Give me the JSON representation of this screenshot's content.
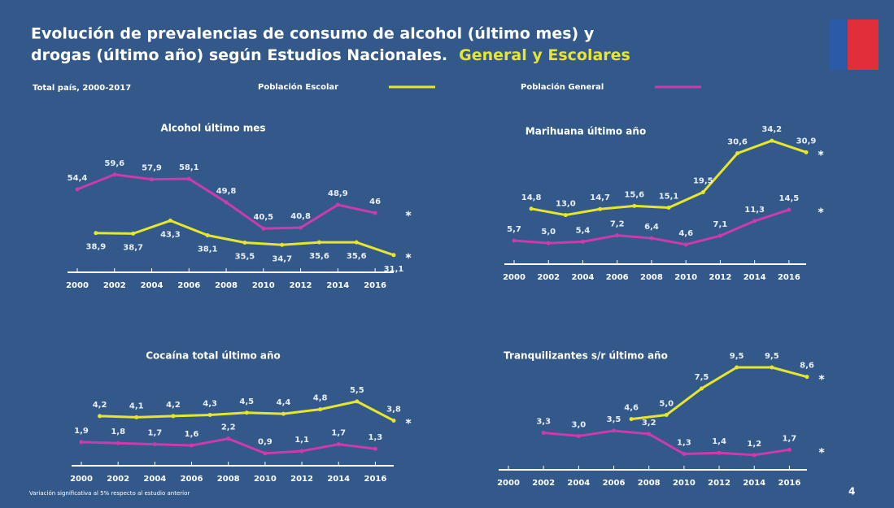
{
  "slide": {
    "title_line1": "Evolución de prevalencias de consumo de alcohol (último mes) y",
    "title_line2": "drogas (último año) según Estudios Nacionales.",
    "title_highlight": "General y Escolares",
    "subtitle": "Total país, 2000-2017",
    "footnote": "Variación significativa al 5% respecto al estudio anterior",
    "page_number": "4"
  },
  "chart_data": [
    {
      "type": "line",
      "title": "Alcohol último mes",
      "xlim": [
        2000,
        2017
      ],
      "xticks": [
        2000,
        2002,
        2004,
        2006,
        2008,
        2010,
        2012,
        2014,
        2016
      ],
      "ylim": [
        25,
        65
      ],
      "series": [
        {
          "name": "Población Escolar",
          "color": "#e6e62e",
          "x": [
            2001,
            2003,
            2005,
            2007,
            2009,
            2011,
            2013,
            2015,
            2017
          ],
          "values": [
            38.9,
            38.7,
            43.3,
            38.1,
            35.5,
            34.7,
            35.6,
            35.6,
            31.1
          ],
          "value_labels": [
            "38,9",
            "38,7",
            "43,3",
            "38,1",
            "35,5",
            "34,7",
            "35,6",
            "35,6",
            "31,1"
          ]
        },
        {
          "name": "Población General",
          "color": "#cc3aad",
          "x": [
            2000,
            2002,
            2004,
            2006,
            2008,
            2010,
            2012,
            2014,
            2016
          ],
          "values": [
            54.4,
            59.6,
            57.9,
            58.1,
            49.8,
            40.5,
            40.8,
            48.9,
            46
          ],
          "value_labels": [
            "54,4",
            "59,6",
            "57,9",
            "58,1",
            "49,8",
            "40,5",
            "40,8",
            "48,9",
            "46"
          ]
        }
      ],
      "annotations": [
        "*",
        "*"
      ]
    },
    {
      "type": "line",
      "title": "Marihuana último año",
      "xlim": [
        2000,
        2017
      ],
      "xticks": [
        2000,
        2002,
        2004,
        2006,
        2008,
        2010,
        2012,
        2014,
        2016
      ],
      "ylim": [
        -1,
        37
      ],
      "series": [
        {
          "color": "#e6e62e",
          "x": [
            2001,
            2003,
            2005,
            2007,
            2009,
            2011,
            2013,
            2015,
            2017
          ],
          "values": [
            14.8,
            13.0,
            14.7,
            15.6,
            15.1,
            19.5,
            30.6,
            34.2,
            30.9
          ],
          "value_labels": [
            "14,8",
            "13,0",
            "14,7",
            "15,6",
            "15,1",
            "19,5",
            "30,6",
            "34,2",
            "30,9"
          ]
        },
        {
          "color": "#cc3aad",
          "x": [
            2000,
            2002,
            2004,
            2006,
            2008,
            2010,
            2012,
            2014,
            2016
          ],
          "values": [
            5.7,
            5.0,
            5.4,
            7.2,
            6.4,
            4.6,
            7.1,
            11.3,
            14.5
          ],
          "value_labels": [
            "5,7",
            "5,0",
            "5,4",
            "7,2",
            "6,4",
            "4,6",
            "7,1",
            "11,3",
            "14,5"
          ]
        }
      ],
      "annotations": [
        "*",
        "*"
      ]
    },
    {
      "type": "line",
      "title": "Cocaína total último año",
      "xlim": [
        2000,
        2017
      ],
      "xticks": [
        2000,
        2002,
        2004,
        2006,
        2008,
        2010,
        2012,
        2014,
        2016
      ],
      "ylim": [
        -0.2,
        6.5
      ],
      "series": [
        {
          "color": "#e6e62e",
          "x": [
            2001,
            2003,
            2005,
            2007,
            2009,
            2011,
            2013,
            2015,
            2017
          ],
          "values": [
            4.2,
            4.1,
            4.2,
            4.3,
            4.5,
            4.4,
            4.8,
            5.5,
            3.8
          ],
          "value_labels": [
            "4,2",
            "4,1",
            "4,2",
            "4,3",
            "4,5",
            "4,4",
            "4,8",
            "5,5",
            "3,8"
          ]
        },
        {
          "color": "#cc3aad",
          "x": [
            2000,
            2002,
            2004,
            2006,
            2008,
            2010,
            2012,
            2014,
            2016
          ],
          "values": [
            1.9,
            1.8,
            1.7,
            1.6,
            2.2,
            0.9,
            1.1,
            1.7,
            1.3
          ],
          "value_labels": [
            "1,9",
            "1,8",
            "1,7",
            "1,6",
            "2,2",
            "0,9",
            "1,1",
            "1,7",
            "1,3"
          ]
        }
      ],
      "annotations": [
        "*"
      ]
    },
    {
      "type": "line",
      "title": "Tranquilizantes s/r último año",
      "xlim": [
        2000,
        2017
      ],
      "xticks": [
        2000,
        2002,
        2004,
        2006,
        2008,
        2010,
        2012,
        2014,
        2016
      ],
      "ylim": [
        -0.2,
        10.5
      ],
      "series": [
        {
          "color": "#e6e62e",
          "x": [
            2007,
            2009,
            2011,
            2013,
            2015,
            2017
          ],
          "values": [
            4.6,
            5.0,
            7.5,
            9.5,
            9.5,
            8.6
          ],
          "value_labels": [
            "4,6",
            "5,0",
            "7,5",
            "9,5",
            "9,5",
            "8,6"
          ]
        },
        {
          "color": "#cc3aad",
          "x": [
            2002,
            2004,
            2006,
            2008,
            2010,
            2012,
            2014,
            2016
          ],
          "values": [
            3.3,
            3.0,
            3.5,
            3.2,
            1.3,
            1.4,
            1.2,
            1.7
          ],
          "value_labels": [
            "3,3",
            "3,0",
            "3,5",
            "3,2",
            "1,3",
            "1,4",
            "1,2",
            "1,7"
          ]
        }
      ],
      "annotations": [
        "*",
        "*"
      ]
    }
  ]
}
